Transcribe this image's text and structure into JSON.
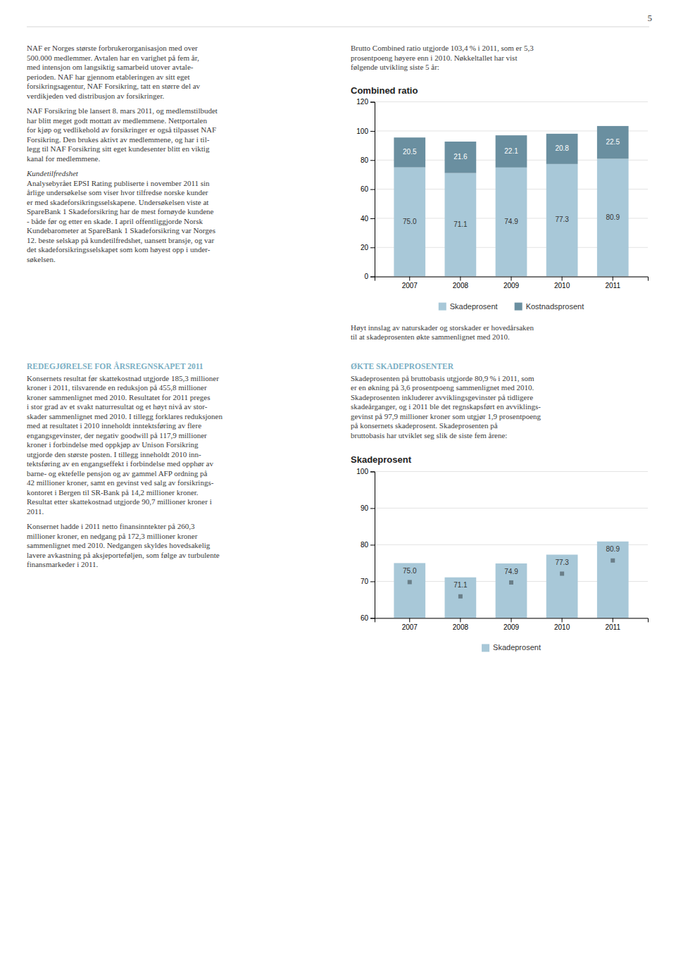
{
  "page_number": "5",
  "heading_color": "#7bafc4",
  "text_color": "#3a3a3a",
  "left_column": [
    {
      "lines": [
        "NAF er Norges største forbrukerorganisasjon med over",
        "500.000 medlemmer. Avtalen har en varighet på fem år,",
        "med intensjon om langsiktig samarbeid utover avtale-",
        "perioden. NAF har gjennom etableringen av sitt eget",
        "forsikringsagentur, NAF Forsikring, tatt en større del av",
        "verdikjeden ved distribusjon av forsikringer."
      ]
    },
    {
      "lines": [
        "NAF Forsikring ble lansert 8. mars 2011, og medlemstilbudet",
        "har blitt meget godt mottatt av medlemmene. Nettportalen",
        "for kjøp og vedlikehold av forsikringer er også tilpasset NAF",
        "Forsikring. Den brukes aktivt av medlemmene, og har i til-",
        "legg til NAF Forsikring sitt eget kundesenter blitt en viktig",
        "kanal for medlemmene."
      ]
    },
    {
      "subheading": "Kundetilfredshet",
      "lines": [
        "Analysebyrået EPSI Rating publiserte i november 2011 sin",
        "årlige undersøkelse som viser hvor tilfredse norske kunder",
        "er med skadeforsikringsselskapene. Undersøkelsen viste at",
        "SpareBank 1 Skadeforsikring har de mest fornøyde kundene",
        "- både før og etter en skade. I april offentliggjorde Norsk",
        "Kundebarometer at SpareBank 1 Skadeforsikring var Norges",
        "12. beste selskap på kundetilfredshet, uansett bransje, og var",
        "det skadeforsikringsselskapet som kom høyest opp i under-",
        "søkelsen."
      ]
    },
    {
      "heading": "REDEGJØRELSE FOR ÅRSREGNSKAPET 2011",
      "lines": [
        "Konsernets resultat før skattekostnad utgjorde 185,3 millioner",
        "kroner i 2011, tilsvarende en reduksjon på 455,8 millioner",
        "kroner sammenlignet med 2010. Resultatet for 2011 preges",
        "i stor grad av et svakt naturresultat og et høyt nivå av stor-",
        "skader sammenlignet med 2010. I tillegg forklares reduksjonen",
        "med at resultatet i 2010 inneholdt inntektsføring av flere",
        "engangsgevinster, der negativ goodwill på 117,9 millioner",
        "kroner i forbindelse med oppkjøp av Unison Forsikring",
        "utgjorde den største posten. I tillegg inneholdt 2010 inn-",
        "tektsføring av en engangseffekt i forbindelse med opphør av",
        "barne- og ektefelle pensjon og av gammel AFP ordning på",
        "42 millioner kroner, samt en gevinst ved salg av forsikrings-",
        "kontoret i Bergen til SR-Bank på 14,2 millioner kroner.",
        "Resultat etter skattekostnad utgjorde 90,7 millioner kroner i",
        "2011."
      ]
    },
    {
      "lines": [
        "Konsernet hadde i 2011 netto finansinntekter på 260,3",
        "millioner kroner, en nedgang på 172,3 millioner kroner",
        "sammenlignet med 2010. Nedgangen skyldes hovedsakelig",
        "lavere avkastning på aksjeporteføljen, som følge av turbulente",
        "finansmarkeder i 2011."
      ]
    }
  ],
  "right_column": [
    {
      "lines": [
        "Brutto Combined ratio utgjorde 103,4 % i 2011, som er 5,3",
        "prosentpoeng høyere enn i 2010. Nøkkeltallet har vist",
        "følgende utvikling siste 5 år:"
      ]
    },
    {
      "lines": [
        "Høyt innslag av naturskader og storskader er hovedårsaken",
        "til at skadeprosenten økte sammenlignet med 2010."
      ]
    },
    {
      "heading": "ØKTE SKADEPROSENTER",
      "lines": [
        "Skadeprosenten på bruttobasis utgjorde 80,9 % i 2011, som",
        "er en økning på 3,6 prosentpoeng sammenlignet med 2010.",
        "Skadeprosenten inkluderer avviklingsgevinster på tidligere",
        "skadeårganger, og i 2011 ble det regnskapsført en avviklings-",
        "gevinst på 97,9 millioner kroner som utgjør 1,9 prosentpoeng",
        "på konsernets skadeprosent. Skadeprosenten på",
        "bruttobasis har utviklet seg slik de siste fem årene:"
      ]
    }
  ],
  "chart_data": [
    {
      "type": "bar",
      "title": "Combined ratio",
      "stacked": true,
      "categories": [
        "2007",
        "2008",
        "2009",
        "2010",
        "2011"
      ],
      "series": [
        {
          "name": "Skadeprosent",
          "color": "#a8c8d8",
          "values": [
            75.0,
            71.1,
            74.9,
            77.3,
            80.9
          ],
          "value_labels": [
            "75.0",
            "71.1",
            "74.9",
            "77.3",
            "80.9"
          ]
        },
        {
          "name": "Kostnadsprosent",
          "color": "#6a8fa0",
          "values": [
            20.5,
            21.6,
            22.1,
            20.8,
            22.5
          ]
        }
      ],
      "ylim": [
        0,
        120
      ],
      "yticks": [
        0,
        20,
        40,
        60,
        80,
        100,
        120
      ],
      "grid": true,
      "data_labels": true,
      "legend": "bottom"
    },
    {
      "type": "bar",
      "title": "Skadeprosent",
      "categories": [
        "2007",
        "2008",
        "2009",
        "2010",
        "2011"
      ],
      "series": [
        {
          "name": "Skadeprosent",
          "color": "#a8c8d8",
          "marker": "square",
          "values": [
            75.0,
            71.1,
            74.9,
            77.3,
            80.9
          ],
          "value_labels": [
            "75.0",
            "71.1",
            "74.9",
            "77.3",
            "80.9"
          ]
        }
      ],
      "ylim": [
        60,
        100
      ],
      "yticks": [
        60,
        70,
        80,
        90,
        100
      ],
      "grid": true,
      "data_labels": true,
      "legend": "bottom"
    }
  ]
}
